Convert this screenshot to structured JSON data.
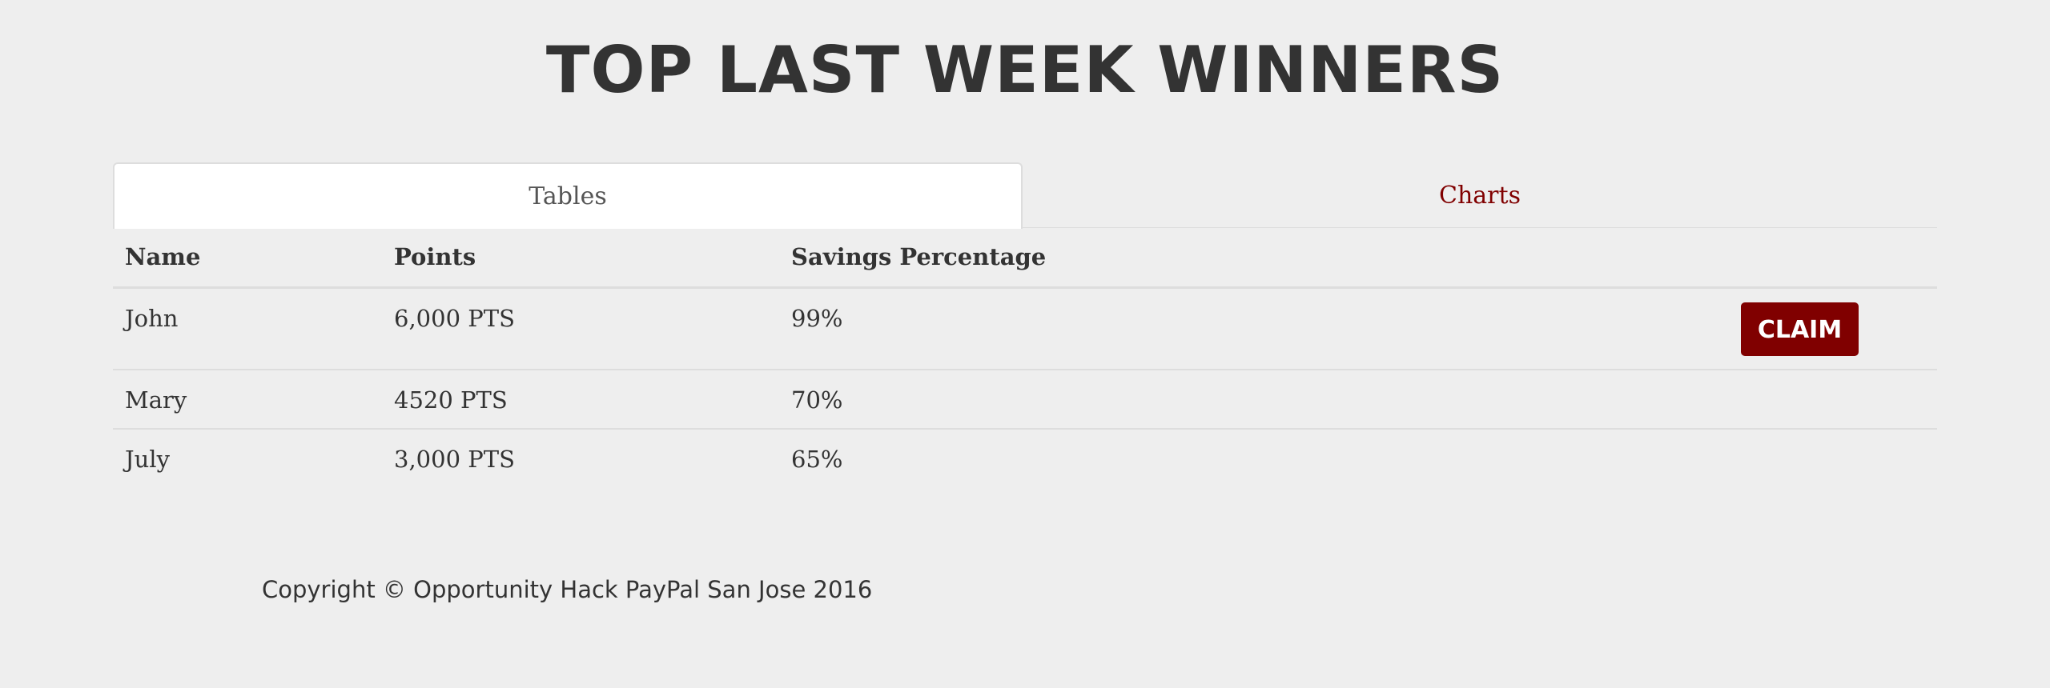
{
  "header": {
    "title": "TOP LAST WEEK WINNERS"
  },
  "tabs": [
    {
      "label": "Tables",
      "active": true
    },
    {
      "label": "Charts",
      "active": false
    }
  ],
  "table": {
    "columns": [
      "Name",
      "Points",
      "Savings Percentage",
      ""
    ],
    "rows": [
      {
        "name": "John",
        "points": "6,000 PTS",
        "savings": "99%",
        "action": "CLAIM"
      },
      {
        "name": "Mary",
        "points": "4520 PTS",
        "savings": "70%",
        "action": ""
      },
      {
        "name": "July",
        "points": "3,000 PTS",
        "savings": "65%",
        "action": ""
      }
    ]
  },
  "footer": {
    "copyright": "Copyright © Opportunity Hack PayPal San Jose 2016"
  },
  "colors": {
    "accent": "#800000",
    "background": "#eeeeee",
    "text": "#333333"
  }
}
